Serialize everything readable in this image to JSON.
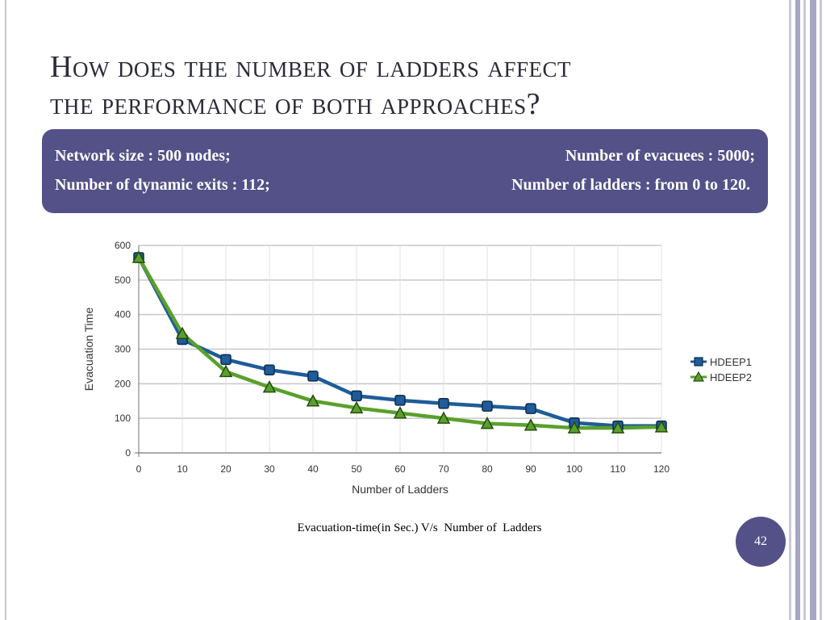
{
  "slide": {
    "title_line1": "How does the number of ladders affect",
    "title_line2": "the performance of both approaches?",
    "page_number": "42",
    "caption": "Evacuation-time(in Sec.) V/s  Number of  Ladders"
  },
  "info": {
    "network_size": "Network size : 500 nodes;",
    "evacuees": "Number of evacuees : 5000;",
    "dynamic_exits": "Number of dynamic exits : 112;",
    "ladders": "Number of ladders : from 0 to 120."
  },
  "colors": {
    "accent": "#535187",
    "hdeep1": "#1f5c99",
    "hdeep2": "#5aa02c"
  },
  "chart_data": {
    "type": "line",
    "xlabel": "Number of Ladders",
    "ylabel": "Evacuation Time",
    "x": [
      0,
      10,
      20,
      30,
      40,
      50,
      60,
      70,
      80,
      90,
      100,
      110,
      120
    ],
    "xlim": [
      0,
      120
    ],
    "ylim": [
      0,
      600
    ],
    "yticks": [
      0,
      100,
      200,
      300,
      400,
      500,
      600
    ],
    "grid": true,
    "legend_position": "right",
    "series": [
      {
        "name": "HDEEP1",
        "marker": "square",
        "values": [
          565,
          328,
          270,
          240,
          222,
          165,
          152,
          143,
          135,
          128,
          87,
          78,
          78
        ]
      },
      {
        "name": "HDEEP2",
        "marker": "triangle",
        "values": [
          565,
          345,
          235,
          190,
          150,
          130,
          115,
          100,
          85,
          80,
          72,
          72,
          75
        ]
      }
    ]
  }
}
